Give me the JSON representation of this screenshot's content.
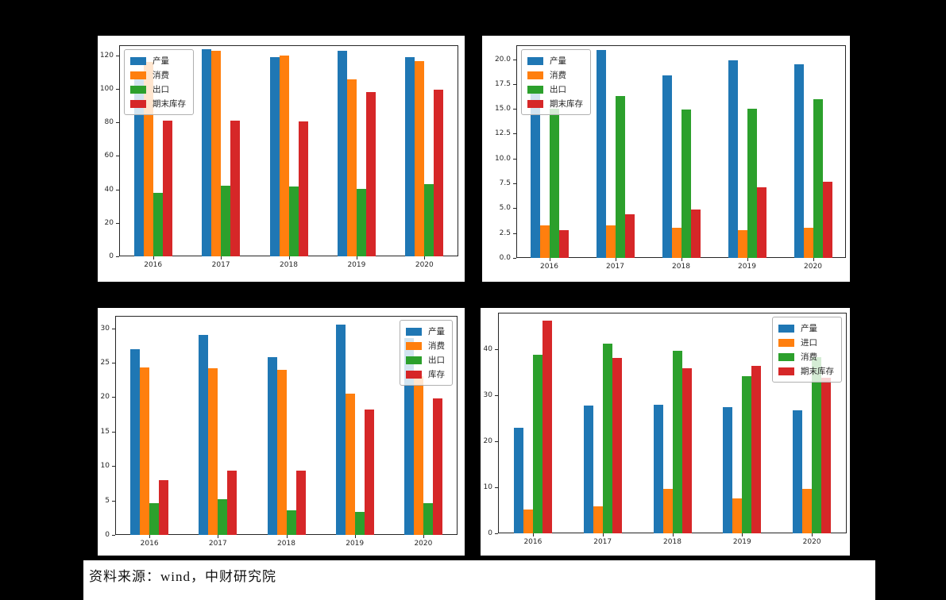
{
  "page": {
    "background_color": "#000000",
    "panel_color": "#ffffff"
  },
  "source_note": {
    "text": "资料来源：wind，中财研究院"
  },
  "palette": {
    "blue": "#1f77b4",
    "orange": "#ff7f0e",
    "green": "#2ca02c",
    "red": "#d62728"
  },
  "chart_data": [
    {
      "id": "top-left",
      "type": "bar",
      "title": "",
      "categories": [
        "2016",
        "2017",
        "2018",
        "2019",
        "2020"
      ],
      "series": [
        {
          "name": "产量",
          "color": "#1f77b4",
          "values": [
            107,
            123.5,
            119,
            122.5,
            119
          ]
        },
        {
          "name": "消费",
          "color": "#ff7f0e",
          "values": [
            116,
            122.5,
            120,
            105.5,
            116.5
          ]
        },
        {
          "name": "出口",
          "color": "#2ca02c",
          "values": [
            38,
            42,
            41.5,
            40.5,
            43
          ]
        },
        {
          "name": "期末库存",
          "color": "#d62728",
          "values": [
            81,
            81,
            80.5,
            98,
            99.5
          ]
        }
      ],
      "yticks": [
        "0",
        "20",
        "40",
        "60",
        "80",
        "100",
        "120"
      ],
      "ylim": [
        0,
        126
      ],
      "grid": false,
      "legend_position": "upper-left"
    },
    {
      "id": "top-right",
      "type": "bar",
      "title": "",
      "categories": [
        "2016",
        "2017",
        "2018",
        "2019",
        "2020"
      ],
      "series": [
        {
          "name": "产量",
          "color": "#1f77b4",
          "values": [
            16.8,
            20.9,
            18.4,
            19.9,
            19.5
          ]
        },
        {
          "name": "消费",
          "color": "#ff7f0e",
          "values": [
            3.3,
            3.3,
            3.0,
            2.8,
            3.0
          ]
        },
        {
          "name": "出口",
          "color": "#2ca02c",
          "values": [
            15.0,
            16.3,
            14.9,
            15.0,
            16.0
          ]
        },
        {
          "name": "期末库存",
          "color": "#d62728",
          "values": [
            2.8,
            4.4,
            4.9,
            7.1,
            7.7
          ]
        }
      ],
      "yticks": [
        "0.0",
        "2.5",
        "5.0",
        "7.5",
        "10.0",
        "12.5",
        "15.0",
        "17.5",
        "20.0"
      ],
      "ylim": [
        0,
        21.4
      ],
      "grid": false,
      "legend_position": "upper-left"
    },
    {
      "id": "bottom-left",
      "type": "bar",
      "title": "",
      "categories": [
        "2016",
        "2017",
        "2018",
        "2019",
        "2020"
      ],
      "series": [
        {
          "name": "产量",
          "color": "#1f77b4",
          "values": [
            27.0,
            29.0,
            25.8,
            30.5,
            28.6
          ]
        },
        {
          "name": "消费",
          "color": "#ff7f0e",
          "values": [
            24.3,
            24.2,
            24.0,
            20.5,
            23.0
          ]
        },
        {
          "name": "出口",
          "color": "#2ca02c",
          "values": [
            4.6,
            5.2,
            3.6,
            3.3,
            4.6
          ]
        },
        {
          "name": "库存",
          "color": "#d62728",
          "values": [
            8.0,
            9.3,
            9.3,
            18.2,
            19.8
          ]
        }
      ],
      "yticks": [
        "0",
        "5",
        "10",
        "15",
        "20",
        "25",
        "30"
      ],
      "ylim": [
        0,
        31.8
      ],
      "grid": false,
      "legend_position": "upper-right"
    },
    {
      "id": "bottom-right",
      "type": "bar",
      "title": "",
      "categories": [
        "2016",
        "2017",
        "2018",
        "2019",
        "2020"
      ],
      "series": [
        {
          "name": "产量",
          "color": "#1f77b4",
          "values": [
            23.0,
            27.7,
            27.9,
            27.4,
            26.7
          ]
        },
        {
          "name": "进口",
          "color": "#ff7f0e",
          "values": [
            5.2,
            5.9,
            9.7,
            7.6,
            9.7
          ]
        },
        {
          "name": "消费",
          "color": "#2ca02c",
          "values": [
            38.8,
            41.2,
            39.6,
            34.1,
            38.2
          ]
        },
        {
          "name": "期末库存",
          "color": "#d62728",
          "values": [
            46.2,
            38.1,
            35.9,
            36.3,
            33.8
          ]
        }
      ],
      "yticks": [
        "0",
        "10",
        "20",
        "30",
        "40"
      ],
      "ylim": [
        0,
        47.9
      ],
      "grid": false,
      "legend_position": "upper-right"
    }
  ]
}
